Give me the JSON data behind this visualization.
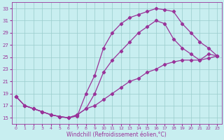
{
  "xlabel": "Windchill (Refroidissement éolien,°C)",
  "bg_color": "#c8eef0",
  "line_color": "#993399",
  "marker": "D",
  "markersize": 2.2,
  "linewidth": 0.9,
  "xlim": [
    -0.5,
    23.5
  ],
  "ylim": [
    14.0,
    34.0
  ],
  "xticks": [
    0,
    1,
    2,
    3,
    4,
    5,
    6,
    7,
    8,
    9,
    10,
    11,
    12,
    13,
    14,
    15,
    16,
    17,
    18,
    19,
    20,
    21,
    22,
    23
  ],
  "yticks": [
    15,
    17,
    19,
    21,
    23,
    25,
    27,
    29,
    31,
    33
  ],
  "grid_color": "#99cccc",
  "curve1_x": [
    0,
    1,
    2,
    3,
    4,
    5,
    6,
    7,
    8,
    9,
    10,
    11,
    12,
    13,
    14,
    15,
    16,
    17,
    18,
    19,
    20,
    21,
    22,
    23
  ],
  "curve1_y": [
    18.5,
    17.0,
    16.5,
    16.0,
    15.5,
    15.2,
    15.0,
    15.3,
    19.0,
    22.0,
    26.5,
    29.0,
    30.5,
    31.5,
    32.0,
    32.5,
    33.0,
    32.8,
    32.5,
    30.5,
    29.0,
    27.5,
    26.5,
    25.2
  ],
  "curve2_x": [
    0,
    1,
    2,
    3,
    4,
    5,
    6,
    7,
    8,
    9,
    10,
    11,
    12,
    13,
    14,
    15,
    16,
    17,
    18,
    19,
    20,
    21,
    22,
    23
  ],
  "curve2_y": [
    18.5,
    17.0,
    16.5,
    16.0,
    15.5,
    15.2,
    15.0,
    15.5,
    16.5,
    19.0,
    22.5,
    24.5,
    26.0,
    27.5,
    29.0,
    30.0,
    31.0,
    30.5,
    28.0,
    26.5,
    25.5,
    24.5,
    25.5,
    25.2
  ],
  "curve3_x": [
    0,
    1,
    2,
    3,
    4,
    5,
    6,
    7,
    8,
    9,
    10,
    11,
    12,
    13,
    14,
    15,
    16,
    17,
    18,
    19,
    20,
    21,
    22,
    23
  ],
  "curve3_y": [
    18.5,
    17.0,
    16.5,
    16.0,
    15.5,
    15.2,
    15.0,
    15.5,
    16.5,
    17.0,
    18.0,
    19.0,
    20.0,
    21.0,
    21.5,
    22.5,
    23.0,
    23.8,
    24.2,
    24.5,
    24.5,
    24.5,
    24.8,
    25.2
  ]
}
